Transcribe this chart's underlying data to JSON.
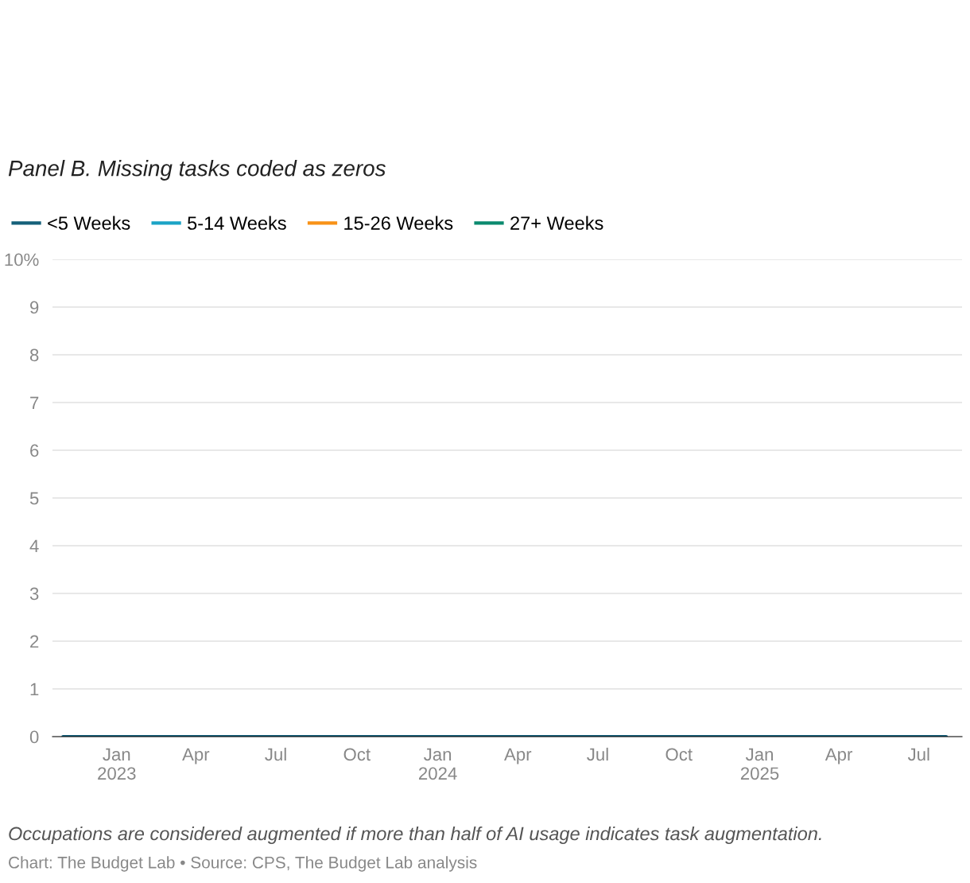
{
  "chart_data": {
    "type": "line",
    "title": "Panel B. Missing tasks coded as zeros",
    "x": [
      "2022-11",
      "2022-12",
      "2023-01",
      "2023-02",
      "2023-03",
      "2023-04",
      "2023-05",
      "2023-06",
      "2023-07",
      "2023-08",
      "2023-09",
      "2023-10",
      "2023-11",
      "2023-12",
      "2024-01",
      "2024-02",
      "2024-03",
      "2024-04",
      "2024-05",
      "2024-06",
      "2024-07",
      "2024-08",
      "2024-09",
      "2024-10",
      "2024-11",
      "2024-12",
      "2025-01",
      "2025-02",
      "2025-03",
      "2025-04",
      "2025-05",
      "2025-06",
      "2025-07",
      "2025-08"
    ],
    "series": [
      {
        "name": "<5 Weeks",
        "color": "#15607a",
        "values": [
          0,
          0,
          0,
          0,
          0,
          0,
          0,
          0,
          0,
          0,
          0,
          0,
          0,
          0,
          0,
          0,
          0,
          0,
          0,
          0,
          0,
          0,
          0,
          0,
          0,
          0,
          0,
          0,
          0,
          0,
          0,
          0,
          0,
          0
        ]
      },
      {
        "name": "5-14 Weeks",
        "color": "#1ba3c6",
        "values": [
          null,
          null,
          null,
          null,
          null,
          null,
          null,
          null,
          null,
          null,
          null,
          null,
          null,
          null,
          null,
          null,
          null,
          null,
          null,
          null,
          null,
          null,
          null,
          null,
          null,
          null,
          null,
          null,
          null,
          null,
          null,
          null,
          null,
          null
        ]
      },
      {
        "name": "15-26 Weeks",
        "color": "#f89217",
        "values": [
          null,
          null,
          null,
          null,
          null,
          null,
          null,
          null,
          null,
          null,
          null,
          null,
          null,
          null,
          null,
          null,
          null,
          null,
          null,
          null,
          null,
          null,
          null,
          null,
          null,
          null,
          null,
          null,
          null,
          null,
          null,
          null,
          null,
          null
        ]
      },
      {
        "name": "27+ Weeks",
        "color": "#0b8a6f",
        "values": [
          null,
          null,
          null,
          null,
          null,
          null,
          null,
          null,
          null,
          null,
          null,
          null,
          null,
          null,
          null,
          null,
          null,
          null,
          null,
          null,
          null,
          null,
          null,
          null,
          null,
          null,
          null,
          null,
          null,
          null,
          null,
          null,
          null,
          null
        ]
      }
    ],
    "xlim": [
      "2022-10-20",
      "2025-08-19"
    ],
    "xticks": [
      {
        "value": "2023-01-01",
        "label": "Jan\n2023"
      },
      {
        "value": "2023-04-01",
        "label": "Apr"
      },
      {
        "value": "2023-07-01",
        "label": "Jul"
      },
      {
        "value": "2023-10-01",
        "label": "Oct"
      },
      {
        "value": "2024-01-01",
        "label": "Jan\n2024"
      },
      {
        "value": "2024-04-01",
        "label": "Apr"
      },
      {
        "value": "2024-07-01",
        "label": "Jul"
      },
      {
        "value": "2024-10-01",
        "label": "Oct"
      },
      {
        "value": "2025-01-01",
        "label": "Jan\n2025"
      },
      {
        "value": "2025-04-01",
        "label": "Apr"
      },
      {
        "value": "2025-07-01",
        "label": "Jul"
      }
    ],
    "ylim": [
      0,
      10
    ],
    "yticks": [
      0,
      1,
      2,
      3,
      4,
      5,
      6,
      7,
      8,
      9,
      {
        "value": 10,
        "label": "10%"
      }
    ],
    "grid": "y",
    "legend": "top left",
    "marker": "none",
    "line_style": "solid",
    "annotations": [
      "Occupations are considered augmented if more than half of AI usage indicates task augmentation.",
      "Chart: The Budget Lab • Source: CPS, The Budget Lab analysis"
    ]
  }
}
